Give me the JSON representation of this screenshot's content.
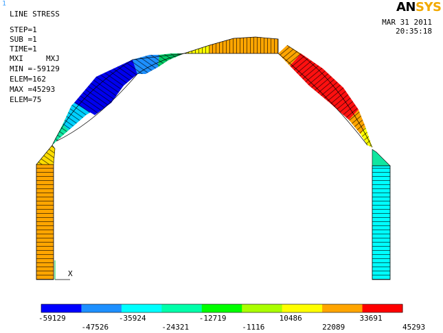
{
  "window_index": "1",
  "title": "LINE STRESS",
  "info": {
    "step": "STEP=1",
    "sub": "SUB =1",
    "time": "TIME=1",
    "mxi": "MXI     MXJ",
    "min": "MIN =-59129",
    "min_elem": "ELEM=162",
    "max": "MAX =45293",
    "max_elem": "ELEM=75"
  },
  "logo": {
    "part1": "AN",
    "part2": "SYS"
  },
  "date": "MAR 31 2011",
  "time_of_day": "20:35:18",
  "axis_label": "X",
  "legend": {
    "colors": [
      "#0000ff",
      "#1e90ff",
      "#00ffff",
      "#00ffaa",
      "#00ff00",
      "#aaff00",
      "#ffff00",
      "#ffa500",
      "#ff0000"
    ],
    "labels_top": [
      "-59129",
      "-35924",
      "-12719",
      "10486",
      "33691"
    ],
    "labels_bottom": [
      "-47526",
      "-24321",
      "-1116",
      "22089",
      "45293"
    ]
  }
}
